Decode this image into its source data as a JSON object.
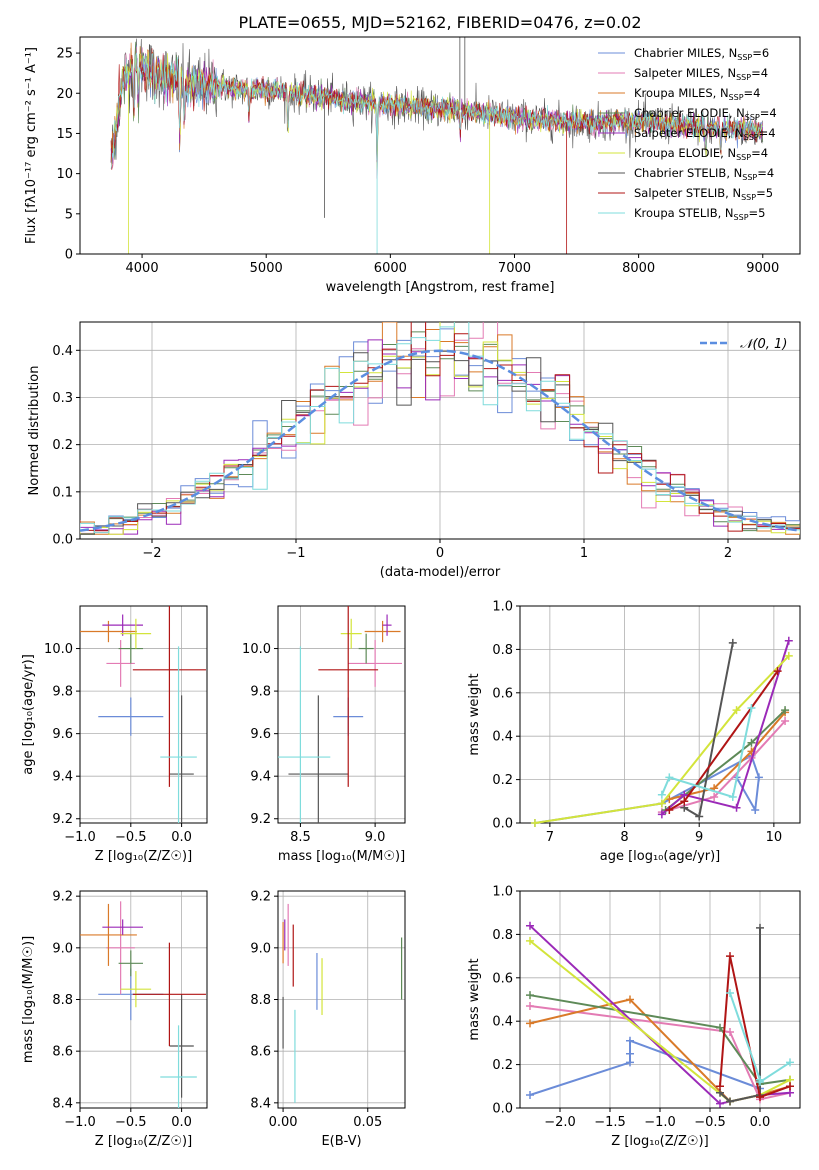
{
  "figure": {
    "title": "PLATE=0655, MJD=52162, FIBERID=0476, z=0.02"
  },
  "colors": {
    "Chabrier MILES": "#6b8cd8",
    "Salpeter MILES": "#e37bb4",
    "Kroupa MILES": "#d97a29",
    "Chabrier ELODIE": "#5e8a58",
    "Salpeter ELODIE": "#9b2ab8",
    "Kroupa ELODIE": "#d3e43b",
    "Chabrier STELIB": "#555555",
    "Salpeter STELIB": "#b01515",
    "Kroupa STELIB": "#7fdcdc",
    "gaussian": "#5b8ee0",
    "grid": "#b0b0b0"
  },
  "chart_data": [
    {
      "id": "spectrum",
      "type": "line",
      "xlabel": "wavelength [Angstrom, rest frame]",
      "ylabel": "Flux [fλ10⁻¹⁷ erg cm⁻² s⁻¹ A⁻¹]",
      "xlim": [
        3500,
        9300
      ],
      "ylim": [
        0,
        27
      ],
      "xticks": [
        4000,
        5000,
        6000,
        7000,
        8000,
        9000
      ],
      "yticks": [
        0,
        5,
        10,
        15,
        20,
        25
      ],
      "grid": false,
      "legend": "right",
      "legend_entries": [
        {
          "model": "Chabrier MILES",
          "label": "Chabrier MILES, N",
          "n": "=6"
        },
        {
          "model": "Salpeter MILES",
          "label": "Salpeter MILES, N",
          "n": "=4"
        },
        {
          "model": "Kroupa MILES",
          "label": "Kroupa MILES, N",
          "n": "=4"
        },
        {
          "model": "Chabrier ELODIE",
          "label": "Chabrier ELODIE, N",
          "n": "=4"
        },
        {
          "model": "Salpeter ELODIE",
          "label": "Salpeter ELODIE, N",
          "n": "=4"
        },
        {
          "model": "Kroupa ELODIE",
          "label": "Kroupa ELODIE, N",
          "n": "=4"
        },
        {
          "model": "Chabrier STELIB",
          "label": "Chabrier STELIB, N",
          "n": "=4"
        },
        {
          "model": "Salpeter STELIB",
          "label": "Salpeter STELIB, N",
          "n": "=5"
        },
        {
          "model": "Kroupa STELIB",
          "label": "Kroupa STELIB, N",
          "n": "=5"
        }
      ],
      "legend_subscript": "SSP",
      "continuum": [
        [
          3750,
          12
        ],
        [
          3850,
          22
        ],
        [
          3950,
          24
        ],
        [
          4050,
          23
        ],
        [
          4200,
          22
        ],
        [
          4400,
          21
        ],
        [
          4600,
          21
        ],
        [
          4800,
          20.5
        ],
        [
          5000,
          20.5
        ],
        [
          5200,
          20
        ],
        [
          5500,
          19.5
        ],
        [
          6000,
          18.5
        ],
        [
          6500,
          18
        ],
        [
          7000,
          17
        ],
        [
          7500,
          16.3
        ],
        [
          8000,
          16.5
        ],
        [
          8500,
          15.8
        ],
        [
          9000,
          15.3
        ]
      ],
      "absorption_lines": [
        [
          3934,
          7
        ],
        [
          3969,
          6
        ],
        [
          4102,
          4
        ],
        [
          4304,
          8
        ],
        [
          4340,
          5
        ],
        [
          4861,
          4
        ],
        [
          5175,
          5
        ],
        [
          5893,
          8
        ],
        [
          6563,
          3
        ],
        [
          8542,
          3
        ],
        [
          8662,
          3
        ]
      ],
      "spikes": [
        {
          "model": "Kroupa ELODIE",
          "x": 3890,
          "y": 0
        },
        {
          "model": "Kroupa STELIB",
          "x": 5893,
          "y": 0
        },
        {
          "model": "Kroupa ELODIE",
          "x": 6800,
          "y": 0
        },
        {
          "model": "Salpeter STELIB",
          "x": 7420,
          "y": 0
        },
        {
          "model": "Chabrier STELIB",
          "x": 6560,
          "y": 27
        },
        {
          "model": "Chabrier STELIB",
          "x": 6600,
          "y": 27
        },
        {
          "model": "Chabrier STELIB",
          "x": 5470,
          "y": 4.5
        }
      ]
    },
    {
      "id": "residuals",
      "type": "histogram",
      "xlabel": "(data-model)/error",
      "ylabel": "Normed distribution",
      "xlim": [
        -2.5,
        2.5
      ],
      "ylim": [
        0,
        0.46
      ],
      "xticks": [
        -2,
        -1,
        0,
        1,
        2
      ],
      "yticks": [
        0.0,
        0.1,
        0.2,
        0.3,
        0.4
      ],
      "grid": true,
      "legend": "top-right",
      "gaussian_label": "𝒩(0, 1)",
      "bin_width": 0.1
    },
    {
      "id": "age-vs-Z",
      "type": "scatter",
      "xlabel": "Z [log₁₀(Z/Z☉)]",
      "ylabel": "age  [log₁₀(age/yr)]",
      "xlim": [
        -1.0,
        0.25
      ],
      "ylim": [
        9.18,
        10.2
      ],
      "xticks": [
        -1.0,
        -0.5,
        0.0
      ],
      "yticks": [
        9.2,
        9.4,
        9.6,
        9.8,
        10.0
      ],
      "grid": true,
      "points": [
        {
          "model": "Chabrier MILES",
          "x": -0.5,
          "y": 9.68,
          "xerr": 0.32,
          "yerr": 0.09
        },
        {
          "model": "Salpeter MILES",
          "x": -0.6,
          "y": 9.93,
          "xerr": 0.14,
          "yerr": 0.11
        },
        {
          "model": "Kroupa MILES",
          "x": -0.72,
          "y": 10.08,
          "xerr": 0.28,
          "yerr": 0.05
        },
        {
          "model": "Chabrier ELODIE",
          "x": -0.5,
          "y": 10.0,
          "xerr": 0.12,
          "yerr": 0.07
        },
        {
          "model": "Salpeter ELODIE",
          "x": -0.58,
          "y": 10.11,
          "xerr": 0.2,
          "yerr": 0.05
        },
        {
          "model": "Kroupa ELODIE",
          "x": -0.45,
          "y": 10.07,
          "xerr": 0.15,
          "yerr": 0.07
        },
        {
          "model": "Chabrier STELIB",
          "x": 0.0,
          "y": 9.41,
          "xerr": 0.12,
          "yerr": 0.37
        },
        {
          "model": "Salpeter STELIB",
          "x": -0.12,
          "y": 9.9,
          "xerr": 0.36,
          "yerr": 0.55
        },
        {
          "model": "Kroupa STELIB",
          "x": -0.03,
          "y": 9.49,
          "xerr": 0.18,
          "yerr": 0.52
        }
      ]
    },
    {
      "id": "age-vs-mass",
      "type": "scatter",
      "xlabel": "mass [log₁₀(M/M☉)]",
      "ylabel": "",
      "xlim": [
        8.35,
        9.2
      ],
      "ylim": [
        9.18,
        10.2
      ],
      "xticks": [
        8.5,
        9.0
      ],
      "yticks": [
        9.2,
        9.4,
        9.6,
        9.8,
        10.0
      ],
      "grid": true,
      "points": [
        {
          "model": "Chabrier MILES",
          "x": 8.82,
          "y": 9.68,
          "xerr": 0.1,
          "yerr": 0.09
        },
        {
          "model": "Salpeter MILES",
          "x": 9.0,
          "y": 9.93,
          "xerr": 0.18,
          "yerr": 0.11
        },
        {
          "model": "Kroupa MILES",
          "x": 9.05,
          "y": 10.08,
          "xerr": 0.12,
          "yerr": 0.05
        },
        {
          "model": "Chabrier ELODIE",
          "x": 8.94,
          "y": 10.0,
          "xerr": 0.05,
          "yerr": 0.07
        },
        {
          "model": "Salpeter ELODIE",
          "x": 9.08,
          "y": 10.11,
          "xerr": 0.03,
          "yerr": 0.05
        },
        {
          "model": "Kroupa ELODIE",
          "x": 8.84,
          "y": 10.07,
          "xerr": 0.07,
          "yerr": 0.07
        },
        {
          "model": "Chabrier STELIB",
          "x": 8.62,
          "y": 9.41,
          "xerr": 0.2,
          "yerr": 0.37
        },
        {
          "model": "Salpeter STELIB",
          "x": 8.82,
          "y": 9.9,
          "xerr": 0.2,
          "yerr": 0.55
        },
        {
          "model": "Kroupa STELIB",
          "x": 8.5,
          "y": 9.49,
          "xerr": 0.2,
          "yerr": 0.52
        }
      ]
    },
    {
      "id": "mass-weight-vs-age",
      "type": "line",
      "xlabel": "age  [log₁₀(age/yr)]",
      "ylabel": "mass weight",
      "xlim": [
        6.6,
        10.35
      ],
      "ylim": [
        0,
        1.0
      ],
      "xticks": [
        7,
        8,
        9,
        10
      ],
      "yticks": [
        0.0,
        0.2,
        0.4,
        0.6,
        0.8,
        1.0
      ],
      "grid": true,
      "series": [
        {
          "model": "Chabrier MILES",
          "x": [
            6.8,
            8.5,
            9.7,
            9.8,
            9.75,
            9.5
          ],
          "y": [
            0.0,
            0.09,
            0.31,
            0.21,
            0.06,
            0.21
          ]
        },
        {
          "model": "Salpeter MILES",
          "x": [
            8.5,
            9.2,
            9.7,
            10.15
          ],
          "y": [
            0.05,
            0.12,
            0.3,
            0.47
          ]
        },
        {
          "model": "Kroupa MILES",
          "x": [
            8.6,
            9.2,
            9.7,
            10.15
          ],
          "y": [
            0.11,
            0.16,
            0.33,
            0.51
          ]
        },
        {
          "model": "Chabrier ELODIE",
          "x": [
            8.55,
            9.7,
            10.15
          ],
          "y": [
            0.06,
            0.37,
            0.52
          ]
        },
        {
          "model": "Salpeter ELODIE",
          "x": [
            8.5,
            8.8,
            9.5,
            10.2
          ],
          "y": [
            0.04,
            0.13,
            0.07,
            0.84
          ]
        },
        {
          "model": "Kroupa ELODIE",
          "x": [
            6.8,
            8.5,
            9.5,
            10.2
          ],
          "y": [
            0.0,
            0.09,
            0.52,
            0.77
          ]
        },
        {
          "model": "Chabrier STELIB",
          "x": [
            8.8,
            9.0,
            9.45
          ],
          "y": [
            0.07,
            0.03,
            0.83
          ]
        },
        {
          "model": "Salpeter STELIB",
          "x": [
            8.6,
            8.8,
            10.05
          ],
          "y": [
            0.06,
            0.1,
            0.7
          ]
        },
        {
          "model": "Kroupa STELIB",
          "x": [
            8.5,
            8.6,
            9.45,
            9.7
          ],
          "y": [
            0.13,
            0.21,
            0.12,
            0.53
          ]
        }
      ]
    },
    {
      "id": "mass-vs-Z",
      "type": "scatter",
      "xlabel": "Z [log₁₀(Z/Z☉)]",
      "ylabel": "mass [log₁₀(M/M☉)]",
      "xlim": [
        -1.0,
        0.25
      ],
      "ylim": [
        8.38,
        9.22
      ],
      "xticks": [
        -1.0,
        -0.5,
        0.0
      ],
      "yticks": [
        8.4,
        8.6,
        8.8,
        9.0,
        9.2
      ],
      "grid": true,
      "points": [
        {
          "model": "Chabrier MILES",
          "x": -0.5,
          "y": 8.82,
          "xerr": 0.32,
          "yerr": 0.1
        },
        {
          "model": "Salpeter MILES",
          "x": -0.6,
          "y": 9.0,
          "xerr": 0.14,
          "yerr": 0.18
        },
        {
          "model": "Kroupa MILES",
          "x": -0.72,
          "y": 9.05,
          "xerr": 0.28,
          "yerr": 0.12
        },
        {
          "model": "Chabrier ELODIE",
          "x": -0.5,
          "y": 8.94,
          "xerr": 0.12,
          "yerr": 0.05
        },
        {
          "model": "Salpeter ELODIE",
          "x": -0.58,
          "y": 9.08,
          "xerr": 0.2,
          "yerr": 0.03
        },
        {
          "model": "Kroupa ELODIE",
          "x": -0.45,
          "y": 8.84,
          "xerr": 0.15,
          "yerr": 0.07
        },
        {
          "model": "Chabrier STELIB",
          "x": 0.0,
          "y": 8.62,
          "xerr": 0.12,
          "yerr": 0.2
        },
        {
          "model": "Salpeter STELIB",
          "x": -0.12,
          "y": 8.82,
          "xerr": 0.36,
          "yerr": 0.2
        },
        {
          "model": "Kroupa STELIB",
          "x": -0.03,
          "y": 8.5,
          "xerr": 0.18,
          "yerr": 0.2
        }
      ]
    },
    {
      "id": "mass-vs-EBV",
      "type": "scatter",
      "xlabel": "E(B-V)",
      "ylabel": "",
      "xlim": [
        -0.003,
        0.072
      ],
      "ylim": [
        8.38,
        9.22
      ],
      "xticks": [
        0.0,
        0.05
      ],
      "yticks": [
        8.4,
        8.6,
        8.8,
        9.0,
        9.2
      ],
      "grid": true,
      "points": [
        {
          "model": "Chabrier MILES",
          "x": 0.02,
          "y": 8.87,
          "xerr": 0,
          "yerr": 0.11
        },
        {
          "model": "Salpeter MILES",
          "x": 0.003,
          "y": 9.05,
          "xerr": 0,
          "yerr": 0.12
        },
        {
          "model": "Kroupa MILES",
          "x": 0.0,
          "y": 9.02,
          "xerr": 0,
          "yerr": 0.08
        },
        {
          "model": "Chabrier ELODIE",
          "x": 0.07,
          "y": 8.92,
          "xerr": 0,
          "yerr": 0.12
        },
        {
          "model": "Salpeter ELODIE",
          "x": 0.001,
          "y": 9.05,
          "xerr": 0,
          "yerr": 0.06
        },
        {
          "model": "Kroupa ELODIE",
          "x": 0.023,
          "y": 8.85,
          "xerr": 0,
          "yerr": 0.11
        },
        {
          "model": "Chabrier STELIB",
          "x": 0.0,
          "y": 8.71,
          "xerr": 0,
          "yerr": 0.1
        },
        {
          "model": "Salpeter STELIB",
          "x": 0.006,
          "y": 8.97,
          "xerr": 0,
          "yerr": 0.12
        },
        {
          "model": "Kroupa STELIB",
          "x": 0.007,
          "y": 8.58,
          "xerr": 0,
          "yerr": 0.18
        }
      ]
    },
    {
      "id": "mass-weight-vs-Z",
      "type": "line",
      "xlabel": "Z [log₁₀(Z/Z☉)]",
      "ylabel": "mass weight",
      "xlim": [
        -2.4,
        0.4
      ],
      "ylim": [
        0,
        1.0
      ],
      "xticks": [
        -2.0,
        -1.5,
        -1.0,
        -0.5,
        0.0
      ],
      "yticks": [
        0.0,
        0.2,
        0.4,
        0.6,
        0.8,
        1.0
      ],
      "grid": true,
      "series": [
        {
          "model": "Chabrier MILES",
          "x": [
            -2.3,
            -1.3,
            -1.3,
            -1.3,
            0.0
          ],
          "y": [
            0.06,
            0.21,
            0.25,
            0.31,
            0.09
          ]
        },
        {
          "model": "Salpeter MILES",
          "x": [
            -2.3,
            -0.3,
            0.0,
            0.3
          ],
          "y": [
            0.47,
            0.35,
            0.04,
            0.07
          ]
        },
        {
          "model": "Kroupa MILES",
          "x": [
            -2.3,
            -1.3,
            -0.3,
            0.0,
            0.3
          ],
          "y": [
            0.39,
            0.5,
            0.03,
            0.06,
            0.1
          ]
        },
        {
          "model": "Chabrier ELODIE",
          "x": [
            -2.3,
            -0.4,
            0.0,
            0.3
          ],
          "y": [
            0.52,
            0.37,
            0.11,
            0.13
          ]
        },
        {
          "model": "Salpeter ELODIE",
          "x": [
            -2.3,
            -0.4,
            0.0,
            0.3
          ],
          "y": [
            0.84,
            0.02,
            0.06,
            0.07
          ]
        },
        {
          "model": "Kroupa ELODIE",
          "x": [
            -2.3,
            -0.3,
            0.0,
            0.3
          ],
          "y": [
            0.77,
            0.03,
            0.06,
            0.13
          ]
        },
        {
          "model": "Chabrier STELIB",
          "x": [
            -0.4,
            -0.3,
            0.0,
            0.0
          ],
          "y": [
            0.07,
            0.03,
            0.06,
            0.83
          ]
        },
        {
          "model": "Salpeter STELIB",
          "x": [
            -0.4,
            -0.3,
            0.0,
            0.3
          ],
          "y": [
            0.1,
            0.7,
            0.05,
            0.1
          ]
        },
        {
          "model": "Kroupa STELIB",
          "x": [
            -0.3,
            0.0,
            0.0,
            0.3
          ],
          "y": [
            0.53,
            0.13,
            0.12,
            0.21
          ]
        }
      ]
    }
  ]
}
